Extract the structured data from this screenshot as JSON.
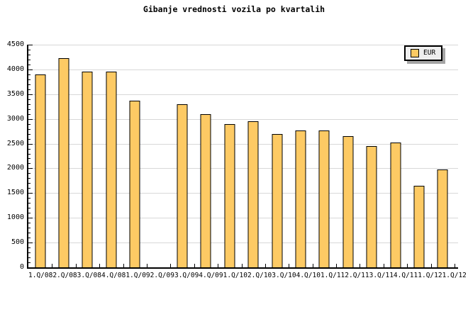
{
  "chart_data": {
    "type": "bar",
    "title": "Gibanje vrednosti vozila po kvartalih",
    "categories": [
      "1.Q/08",
      "2.Q/08",
      "3.Q/08",
      "4.Q/08",
      "1.Q/09",
      "2.Q/09",
      "3.Q/09",
      "4.Q/09",
      "1.Q/10",
      "2.Q/10",
      "3.Q/10",
      "4.Q/10",
      "1.Q/11",
      "2.Q/11",
      "3.Q/11",
      "4.Q/11",
      "1.Q/12",
      "1.Q/12"
    ],
    "values": [
      3900,
      4230,
      3950,
      3950,
      3370,
      null,
      3300,
      3100,
      2900,
      2950,
      2700,
      2760,
      2760,
      2650,
      2450,
      2520,
      1650,
      1980
    ],
    "series": [
      {
        "name": "EUR"
      }
    ],
    "xlabel": "",
    "ylabel": "",
    "ylim": [
      0,
      4500
    ],
    "ytick_step": 500,
    "ytick_minor_step": 100,
    "ytick_labels": [
      "0",
      "500",
      "1000",
      "1500",
      "2000",
      "2500",
      "3000",
      "3500",
      "4000",
      "4500"
    ],
    "grid": "horizontal-major",
    "legend": {
      "label": "EUR",
      "position": "top-right",
      "swatch": "eur-swatch-icon"
    },
    "colors": {
      "bar_fill": "#FDCA64",
      "bar_border": "#000000",
      "grid_line": "#D8D8D8",
      "axis": "#000000",
      "text": "#000000",
      "legend_bg": "#EFEFEF",
      "legend_shadow": "#A5A5A5",
      "background": "#FFFFFF"
    }
  }
}
